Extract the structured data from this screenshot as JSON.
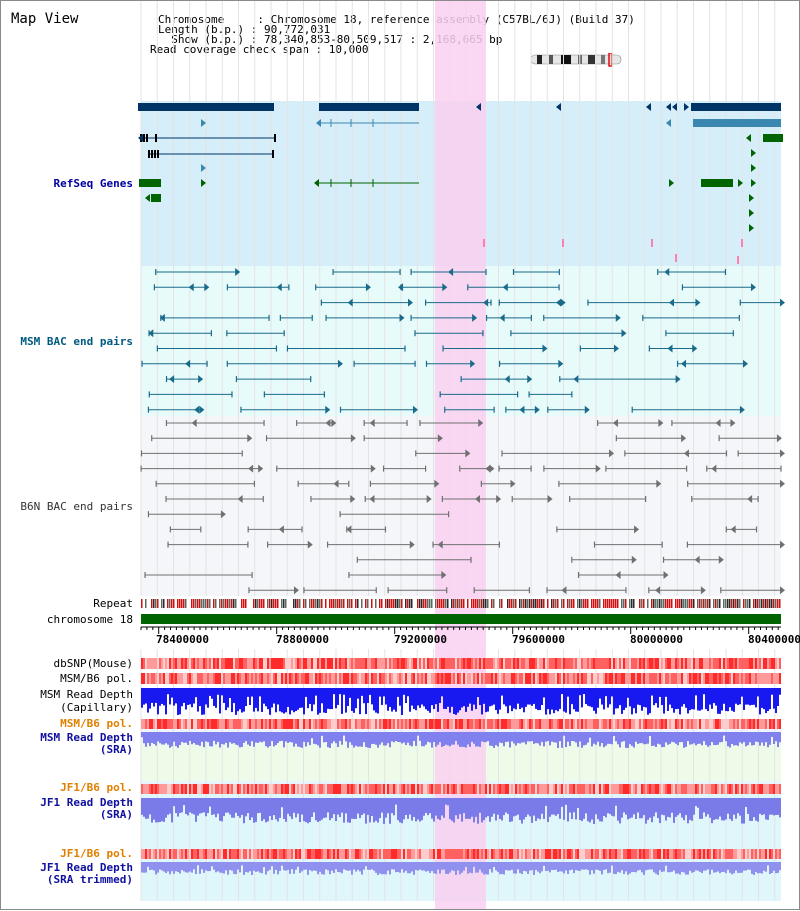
{
  "window": {
    "title": "Map View"
  },
  "header": {
    "lines": [
      "Chromosome     : Chromosome 18, reference assembly (C57BL/6J) (Build 37)",
      "Length (b.p.) : 90,772,031",
      "  Show (b.p.) : 78,340,853-80,509,517 : 2,168,665 bp",
      "Read coverage check span : 10,000"
    ]
  },
  "tracks": {
    "refseq": "RefSeq Genes",
    "msm_bac": "MSM BAC end pairs",
    "b6n_bac": "B6N BAC end pairs",
    "repeat": "Repeat",
    "chromosome": "chromosome 18",
    "dbsnp": "dbSNP(Mouse)",
    "msm_b6_pol_1": "MSM/B6 pol.",
    "msm_read_depth_cap_1": "MSM Read Depth",
    "msm_read_depth_cap_2": "(Capillary)",
    "msm_b6_pol_2": "MSM/B6 pol.",
    "msm_read_depth_sra_1": "MSM Read Depth",
    "msm_read_depth_sra_2": "(SRA)",
    "jf1_b6_pol_1": "JF1/B6 pol.",
    "jf1_read_depth_sra_1": "JF1 Read Depth",
    "jf1_read_depth_sra_2": "(SRA)",
    "jf1_b6_pol_2": "JF1/B6 pol.",
    "jf1_read_depth_trim_1": "JF1 Read Depth",
    "jf1_read_depth_trim_2": "(SRA trimmed)"
  },
  "axis": {
    "ticks": [
      "78400000",
      "78800000",
      "79200000",
      "79600000",
      "80000000",
      "80400000"
    ]
  },
  "colors": {
    "highlight": "#f9d0f0",
    "refseq_dark": "#003366",
    "refseq_mid": "#3a88b0",
    "refseq_green": "#006400",
    "chromosome": "#006400",
    "depth_blue": "#1a1aff",
    "depth_light": "#8080f0",
    "pol_red": "#ff3030"
  }
}
